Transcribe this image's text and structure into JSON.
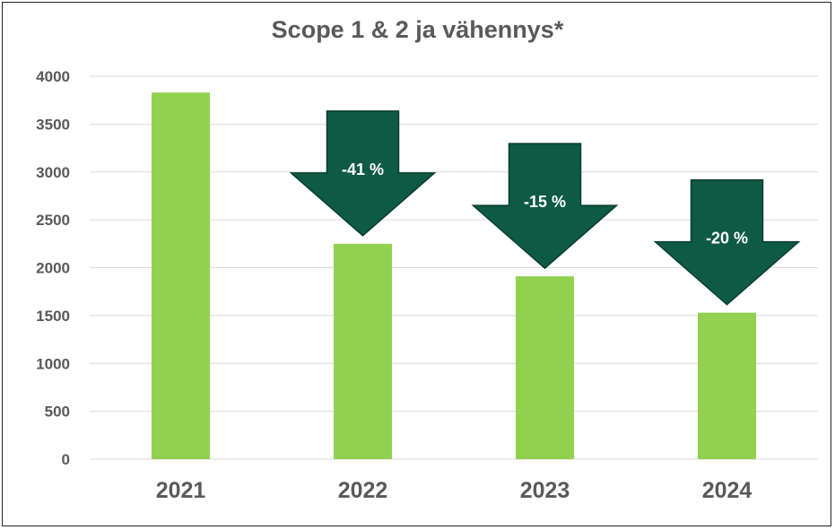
{
  "chart_data": {
    "type": "bar",
    "title": "Scope 1 & 2 ja vähennys*",
    "xlabel": "",
    "ylabel": "",
    "categories": [
      "2021",
      "2022",
      "2023",
      "2024"
    ],
    "values": [
      3830,
      2250,
      1910,
      1530
    ],
    "ylim": [
      0,
      4000
    ],
    "yticks": [
      0,
      500,
      1000,
      1500,
      2000,
      2500,
      3000,
      3500,
      4000
    ],
    "grid": true,
    "legend": "none",
    "annotations": [
      {
        "category": "2022",
        "label": "-41 %"
      },
      {
        "category": "2023",
        "label": "-15 %"
      },
      {
        "category": "2024",
        "label": "-20 %"
      }
    ]
  },
  "colors": {
    "bar": "#92D050",
    "arrow": "#0E5A44",
    "arrow_stroke": "#0A3D2E",
    "grid": "#D9D9D9",
    "text": "#595959"
  }
}
